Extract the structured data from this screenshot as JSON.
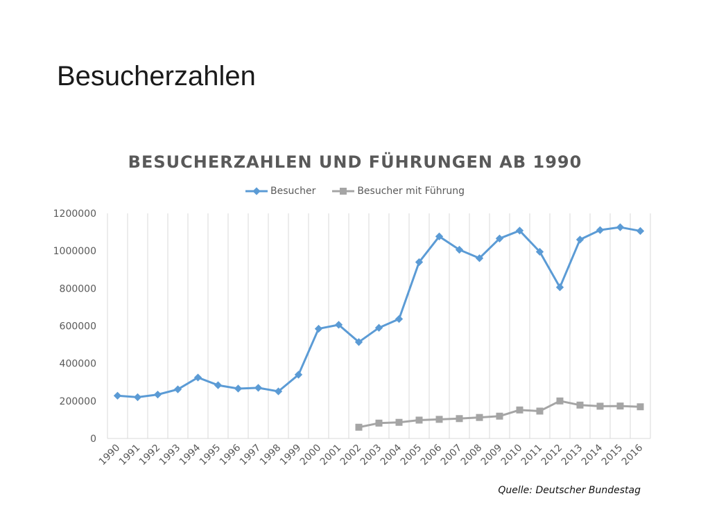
{
  "slide": {
    "title": "Besucherzahlen",
    "source": "Quelle: Deutscher Bundestag"
  },
  "chart_data": {
    "type": "line",
    "title": "BESUCHERZAHLEN UND FÜHRUNGEN AB 1990",
    "xlabel": "",
    "ylabel": "",
    "ylim": [
      0,
      1200000
    ],
    "yticks": [
      0,
      200000,
      400000,
      600000,
      800000,
      1000000,
      1200000
    ],
    "ytick_labels": [
      "0",
      "200000",
      "400000",
      "600000",
      "800000",
      "1000000",
      "1200000"
    ],
    "grid": "vertical",
    "legend_position": "top",
    "categories": [
      "1990",
      "1991",
      "1992",
      "1993",
      "1994",
      "1995",
      "1996",
      "1997",
      "1998",
      "1999",
      "2000",
      "2001",
      "2002",
      "2003",
      "2004",
      "2005",
      "2006",
      "2007",
      "2008",
      "2009",
      "2010",
      "2011",
      "2012",
      "2013",
      "2014",
      "2015",
      "2016"
    ],
    "series": [
      {
        "name": "Besucher",
        "color": "#5B9BD5",
        "marker": "diamond",
        "values": [
          228000,
          220000,
          234000,
          262000,
          325000,
          284000,
          266000,
          270000,
          251000,
          340000,
          585000,
          606000,
          514000,
          590000,
          637000,
          940000,
          1077000,
          1006000,
          961000,
          1066000,
          1108000,
          995000,
          806000,
          1060000,
          1111000,
          1126000,
          1106000
        ]
      },
      {
        "name": "Besucher mit Führung",
        "color": "#A5A5A5",
        "marker": "square",
        "values": [
          null,
          null,
          null,
          null,
          null,
          null,
          null,
          null,
          null,
          null,
          null,
          null,
          60000,
          82000,
          86000,
          98000,
          102000,
          106000,
          112000,
          119000,
          152000,
          146000,
          200000,
          178000,
          172000,
          173000,
          169000
        ]
      }
    ]
  }
}
